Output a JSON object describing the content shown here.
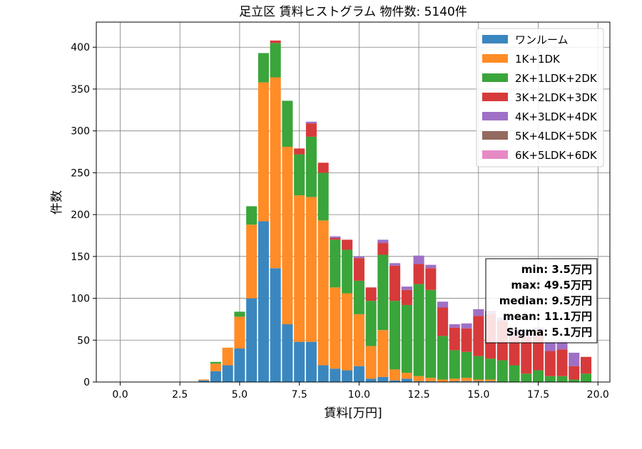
{
  "chart_data": {
    "type": "bar",
    "stacked": true,
    "title": "足立区 賃料ヒストグラム  物件数: 5140件",
    "xlabel": "賃料[万円]",
    "ylabel": "件数",
    "xlim": [
      -1.0,
      20.5
    ],
    "ylim": [
      0,
      430
    ],
    "bin_width": 0.5,
    "grid": true,
    "legend_position": "top-right",
    "xticks": [
      "0.0",
      "2.5",
      "5.0",
      "7.5",
      "10.0",
      "12.5",
      "15.0",
      "17.5",
      "20.0"
    ],
    "yticks": [
      "0",
      "50",
      "100",
      "150",
      "200",
      "250",
      "300",
      "350",
      "400"
    ],
    "x": [
      3.5,
      4.0,
      4.5,
      5.0,
      5.5,
      6.0,
      6.5,
      7.0,
      7.5,
      8.0,
      8.5,
      9.0,
      9.5,
      10.0,
      10.5,
      11.0,
      11.5,
      12.0,
      12.5,
      13.0,
      13.5,
      14.0,
      14.5,
      15.0,
      15.5,
      16.0,
      16.5,
      17.0,
      17.5,
      18.0,
      18.5,
      19.0,
      19.5
    ],
    "series": [
      {
        "name": "ワンルーム",
        "color": "#3a87bf",
        "values": [
          2,
          13,
          20,
          40,
          100,
          192,
          136,
          69,
          48,
          48,
          20,
          16,
          14,
          19,
          4,
          6,
          2,
          4,
          1,
          1,
          0,
          1,
          1,
          1,
          1,
          0,
          0,
          0,
          0,
          0,
          0,
          0,
          0
        ]
      },
      {
        "name": "1K+1DK",
        "color": "#ff8c26",
        "values": [
          1,
          9,
          21,
          38,
          88,
          166,
          228,
          212,
          175,
          173,
          173,
          97,
          92,
          62,
          39,
          56,
          13,
          7,
          6,
          4,
          3,
          3,
          4,
          2,
          2,
          0,
          0,
          0,
          0,
          0,
          0,
          0,
          0
        ]
      },
      {
        "name": "2K+1LDK+2DK",
        "color": "#3aa53a",
        "values": [
          0,
          2,
          0,
          6,
          22,
          35,
          41,
          55,
          49,
          72,
          57,
          57,
          52,
          40,
          54,
          90,
          82,
          81,
          110,
          105,
          52,
          34,
          31,
          28,
          25,
          26,
          20,
          10,
          14,
          7,
          7,
          3,
          10
        ]
      },
      {
        "name": "3K+2LDK+3DK",
        "color": "#d73a3a",
        "values": [
          0,
          0,
          0,
          0,
          0,
          0,
          3,
          0,
          7,
          16,
          12,
          2,
          12,
          27,
          16,
          14,
          42,
          18,
          24,
          26,
          34,
          27,
          28,
          48,
          53,
          47,
          36,
          44,
          47,
          30,
          32,
          16,
          20
        ]
      },
      {
        "name": "4K+3LDK+4DK",
        "color": "#9e70c6",
        "values": [
          0,
          0,
          0,
          0,
          0,
          0,
          0,
          0,
          0,
          2,
          0,
          2,
          0,
          2,
          0,
          4,
          3,
          4,
          10,
          4,
          7,
          4,
          6,
          8,
          4,
          4,
          7,
          8,
          4,
          11,
          10,
          16,
          0
        ]
      },
      {
        "name": "5K+4LDK+5DK",
        "color": "#946a60",
        "values": [
          0,
          0,
          0,
          0,
          0,
          0,
          0,
          0,
          0,
          0,
          0,
          0,
          0,
          0,
          0,
          0,
          0,
          0,
          0,
          0,
          0,
          0,
          0,
          0,
          0,
          0,
          0,
          0,
          0,
          0,
          0,
          0,
          0
        ]
      },
      {
        "name": "6K+5LDK+6DK",
        "color": "#e68ac6",
        "values": [
          0,
          0,
          0,
          0,
          0,
          0,
          0,
          0,
          0,
          0,
          0,
          0,
          0,
          0,
          0,
          0,
          0,
          0,
          0,
          0,
          0,
          0,
          0,
          0,
          0,
          0,
          0,
          0,
          0,
          0,
          0,
          0,
          0
        ]
      }
    ],
    "stats": {
      "min": "min: 3.5万円",
      "max": "max: 49.5万円",
      "median": "median: 9.5万円",
      "mean": "mean: 11.1万円",
      "sigma": "Sigma: 5.1万円"
    }
  }
}
